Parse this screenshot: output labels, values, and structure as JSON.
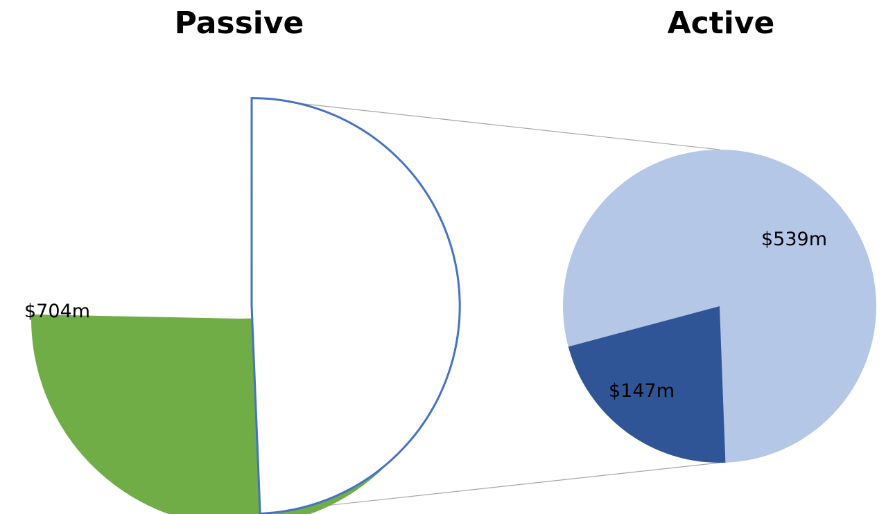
{
  "chart_data": {
    "type": "pie",
    "variant": "pie-of-pie",
    "titles": {
      "primary": "Passive",
      "secondary": "Active"
    },
    "primary_slices": [
      {
        "label": "$704m",
        "value": 704,
        "color": "#70ad47",
        "style": "filled"
      },
      {
        "label": "",
        "value": 686,
        "color": "#4472c4",
        "style": "outline",
        "expanded_into_secondary": true
      }
    ],
    "secondary_slices": [
      {
        "label": "$539m",
        "value": 539,
        "color": "#b4c7e7"
      },
      {
        "label": "$147m",
        "value": 147,
        "color": "#2f5597"
      }
    ],
    "connector_color": "#a6a6a6",
    "legend": "none"
  }
}
